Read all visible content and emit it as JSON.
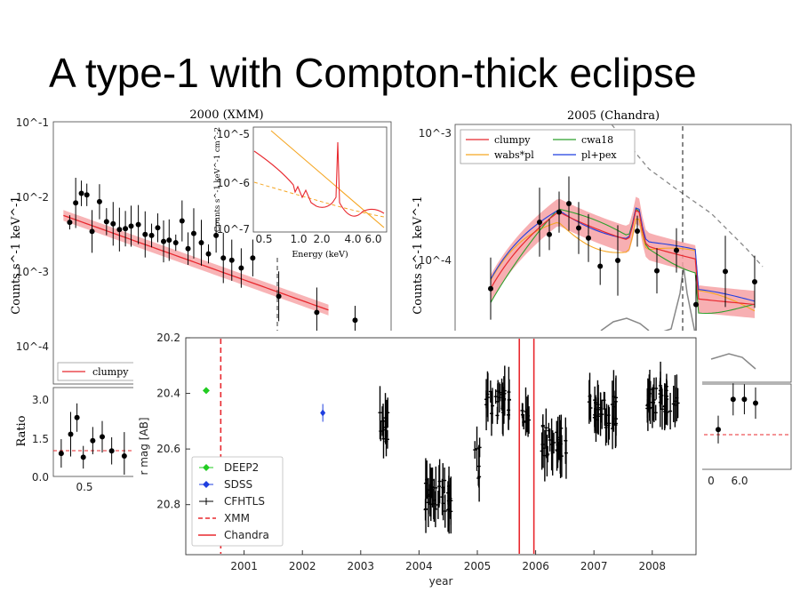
{
  "slide_title": "A type-1 with Compton-thick eclipse",
  "colors": {
    "model": "#e8282e",
    "band": "#f6a1a4",
    "orange": "#f5a623",
    "green": "#2ca02c",
    "blue": "#1f3fe0",
    "grey": "#888888",
    "cfhtls": "#000000",
    "deep2": "#22cc22",
    "sdss": "#1f3fe0"
  },
  "chart_data": [
    {
      "type": "scatter",
      "title": "2000 (XMM)",
      "ylabel": "Counts s^-1 keV^-1",
      "ytick_labels": [
        "10^-1",
        "10^-2",
        "10^-3",
        "10^-4"
      ],
      "legend": [
        "clumpy"
      ],
      "xscale": "log",
      "yscale": "log",
      "series": [
        {
          "name": "data",
          "x": [
            0.4,
            0.42,
            0.44,
            0.46,
            0.48,
            0.51,
            0.54,
            0.57,
            0.6,
            0.63,
            0.66,
            0.7,
            0.74,
            0.78,
            0.82,
            0.86,
            0.9,
            0.95,
            1.0,
            1.05,
            1.1,
            1.17,
            1.24,
            1.32,
            1.4,
            1.5,
            1.62,
            1.78,
            2.2,
            3.0,
            4.1
          ],
          "y": [
            0.0045,
            0.0082,
            0.011,
            0.0105,
            0.0034,
            0.0085,
            0.0046,
            0.0043,
            0.0036,
            0.0037,
            0.004,
            0.0042,
            0.0031,
            0.003,
            0.0038,
            0.0025,
            0.0026,
            0.0024,
            0.0047,
            0.002,
            0.0032,
            0.0024,
            0.0017,
            0.003,
            0.0015,
            0.0014,
            0.0011,
            0.0015,
            0.00046,
            0.00028,
            0.00022
          ]
        }
      ],
      "ratio_panel": {
        "ylabel": "Ratio",
        "ytick_labels": [
          "3.0",
          "1.5",
          "0.0"
        ],
        "xtick_labels": [
          "0.5"
        ],
        "x": [
          0.4,
          0.46,
          0.5,
          0.54,
          0.6,
          0.66,
          0.72,
          0.8,
          0.9
        ],
        "y": [
          0.9,
          1.65,
          2.3,
          0.75,
          1.4,
          1.55,
          1.0,
          0.8,
          1.05
        ]
      },
      "inset": {
        "xlabel": "Energy (keV)",
        "ylabel": "Counts s^-1 keV^-1 cm^-2",
        "ytick_labels": [
          "10^-5",
          "10^-6",
          "10^-7"
        ],
        "xtick_labels": [
          "0.5",
          "1.0",
          "2.0",
          "4.0",
          "6.0"
        ]
      }
    },
    {
      "type": "line",
      "title": "2005 (Chandra)",
      "ylabel": "Counts s^-1 keV^-1",
      "ytick_labels": [
        "10^-3",
        "10^-4"
      ],
      "legend": [
        "clumpy",
        "wabs*pl",
        "cwa18",
        "pl+pex"
      ],
      "series": [
        {
          "name": "data",
          "x": [
            0.5,
            1.0,
            1.1,
            1.2,
            1.3,
            1.4,
            1.5,
            1.62,
            1.8,
            2.0,
            2.2,
            2.4,
            2.6,
            2.9,
            3.2
          ],
          "y": [
            6e-05,
            0.0002,
            0.00016,
            0.00024,
            0.00028,
            0.00018,
            0.00015,
            9e-05,
            0.0001,
            0.00017,
            8.3e-05,
            0.00012,
            4.5e-05,
            8.2e-05,
            6.8e-05
          ]
        }
      ],
      "ratio_panel": {
        "xtick_labels": [
          "0",
          "6.0"
        ],
        "x": [
          0.5,
          0.7,
          0.85,
          1.0
        ],
        "y": [
          0.55,
          0.95,
          0.95,
          0.9
        ]
      }
    },
    {
      "type": "scatter",
      "title": "",
      "xlabel": "year",
      "ylabel": "r mag [AB]",
      "xlim": [
        2000.0,
        2008.75
      ],
      "ylim": [
        20.2,
        20.98
      ],
      "y_inverted": true,
      "xtick_labels": [
        "2001",
        "2002",
        "2003",
        "2004",
        "2005",
        "2006",
        "2007",
        "2008"
      ],
      "ytick_labels": [
        "20.2",
        "20.4",
        "20.6",
        "20.8"
      ],
      "legend": [
        "DEEP2",
        "SDSS",
        "CFHTLS",
        "XMM",
        "Chandra"
      ],
      "series": [
        {
          "name": "DEEP2",
          "x": [
            2000.35
          ],
          "y": [
            20.39
          ]
        },
        {
          "name": "SDSS",
          "x": [
            2002.35
          ],
          "y": [
            20.47
          ]
        },
        {
          "name": "CFHTLS",
          "groups": [
            {
              "x_range": [
                2003.3,
                2003.5
              ],
              "y_center": 20.52,
              "spread": 0.06,
              "n": 12
            },
            {
              "x_range": [
                2004.1,
                2004.55
              ],
              "y_center": 20.77,
              "spread": 0.06,
              "n": 34
            },
            {
              "x_range": [
                2004.95,
                2005.05
              ],
              "y_center": 20.65,
              "spread": 0.06,
              "n": 6
            },
            {
              "x_range": [
                2005.15,
                2005.55
              ],
              "y_center": 20.43,
              "spread": 0.05,
              "n": 26
            },
            {
              "x_range": [
                2005.75,
                2005.9
              ],
              "y_center": 20.47,
              "spread": 0.04,
              "n": 10
            },
            {
              "x_range": [
                2006.1,
                2006.55
              ],
              "y_center": 20.57,
              "spread": 0.06,
              "n": 30
            },
            {
              "x_range": [
                2006.9,
                2007.45
              ],
              "y_center": 20.47,
              "spread": 0.06,
              "n": 34
            },
            {
              "x_range": [
                2007.9,
                2008.45
              ],
              "y_center": 20.42,
              "spread": 0.05,
              "n": 36
            }
          ]
        }
      ],
      "vlines": [
        {
          "name": "XMM",
          "x": 2000.6,
          "style": "dashed"
        },
        {
          "name": "Chandra",
          "x": 2005.72,
          "style": "solid"
        },
        {
          "name": "Chandra",
          "x": 2005.97,
          "style": "solid"
        }
      ]
    }
  ]
}
